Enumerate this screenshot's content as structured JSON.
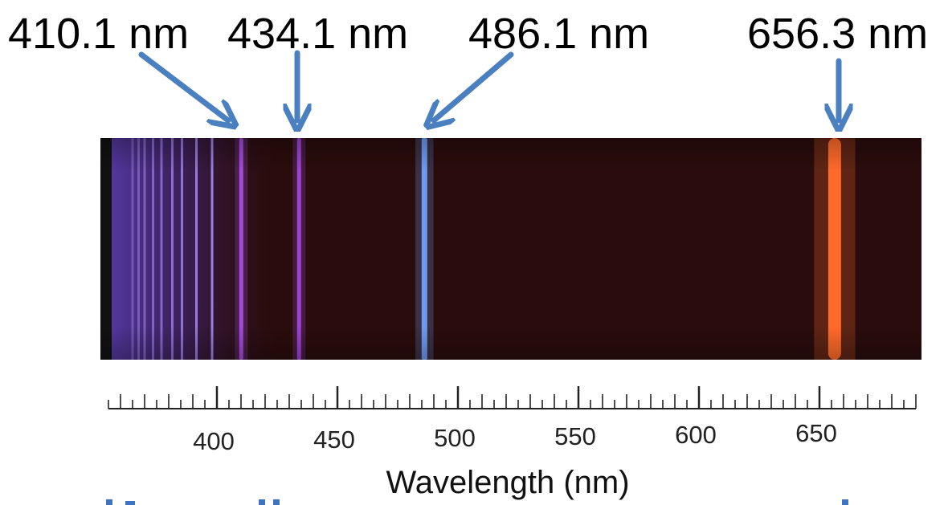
{
  "diagram": {
    "type": "emission-spectrum",
    "axis_title": "Wavelength (nm)",
    "axis_min": 355,
    "axis_max": 690,
    "tick_values": [
      400,
      450,
      500,
      550,
      600,
      650
    ],
    "minor_tick_step": 5,
    "major_tick_step": 50,
    "labeled_lines": [
      {
        "label": "410.1 nm",
        "wavelength": 410.1,
        "color": "#a24bd6"
      },
      {
        "label": "434.1 nm",
        "wavelength": 434.1,
        "color": "#9a45d2"
      },
      {
        "label": "486.1 nm",
        "wavelength": 486.1,
        "color": "#6e9bf0"
      },
      {
        "label": "656.3 nm",
        "wavelength": 656.3,
        "color": "#ff6a2a"
      }
    ],
    "extra_lines_wavelength": [
      365.0,
      367.5,
      370.0,
      373.5,
      377.0,
      381.5,
      385.5,
      391.5,
      398.0
    ],
    "extra_lines_color": "#a487f0",
    "background_color": "#2a0c0c",
    "arrow_color": "#4a7fc0"
  }
}
